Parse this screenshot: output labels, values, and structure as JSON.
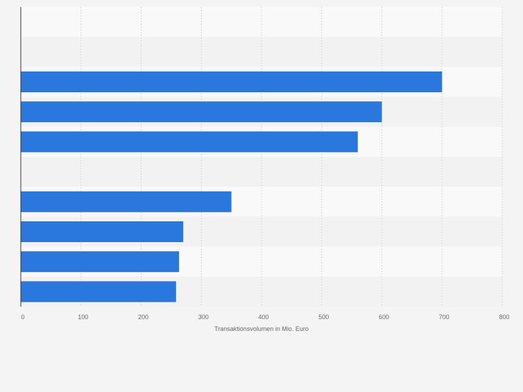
{
  "chart_data": {
    "type": "bar",
    "orientation": "horizontal",
    "categories": [
      "",
      "",
      "",
      "",
      "",
      "",
      "",
      "",
      "",
      ""
    ],
    "values": [
      null,
      null,
      700,
      600,
      560,
      null,
      350,
      270,
      263,
      258
    ],
    "xlabel": "Transaktionsvolumen in Mio. Euro",
    "ylabel": "",
    "xlim": [
      0,
      800
    ],
    "ticks": [
      "0",
      "100",
      "200",
      "300",
      "400",
      "500",
      "600",
      "700",
      "800"
    ],
    "grid": true,
    "legend": "none"
  },
  "colors": {
    "bar": "#2a78de",
    "band_light": "#f9f9f9",
    "band_dark": "#f2f2f2",
    "grid": "#d6d6d6",
    "axis": "#333333",
    "tick_text": "#666666",
    "page_bg": "#f4f4f4"
  }
}
